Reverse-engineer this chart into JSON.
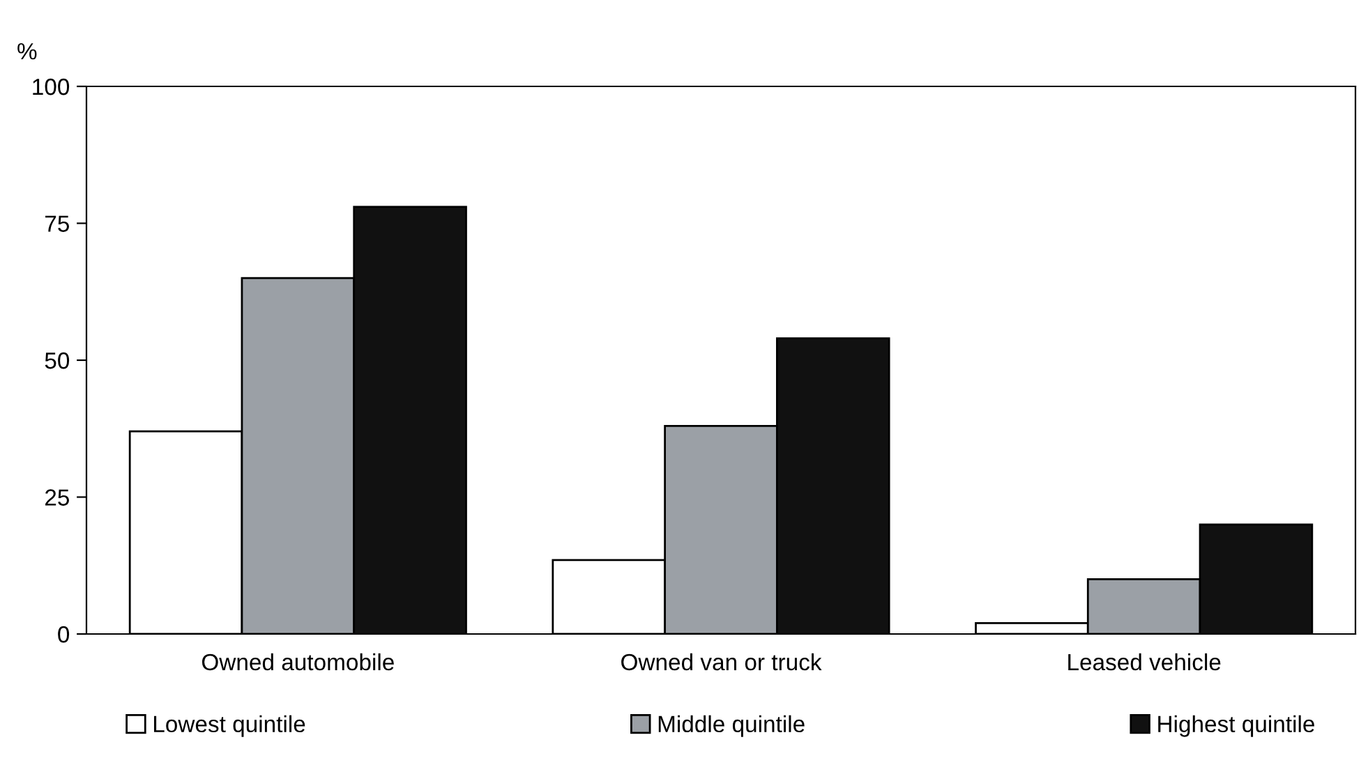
{
  "chart_data": {
    "type": "bar",
    "ylabel": "%",
    "categories": [
      "Owned automobile",
      "Owned van or truck",
      "Leased vehicle"
    ],
    "series": [
      {
        "name": "Lowest quintile",
        "color": "#ffffff",
        "values": [
          37,
          13.5,
          2
        ]
      },
      {
        "name": "Middle quintile",
        "color": "#9ba0a6",
        "values": [
          65,
          38,
          10
        ]
      },
      {
        "name": "Highest quintile",
        "color": "#111111",
        "values": [
          78,
          54,
          20
        ]
      }
    ],
    "ylim": [
      0,
      100
    ],
    "yticks": [
      0,
      25,
      50,
      75,
      100
    ],
    "grid": false,
    "legend": "bottom"
  }
}
